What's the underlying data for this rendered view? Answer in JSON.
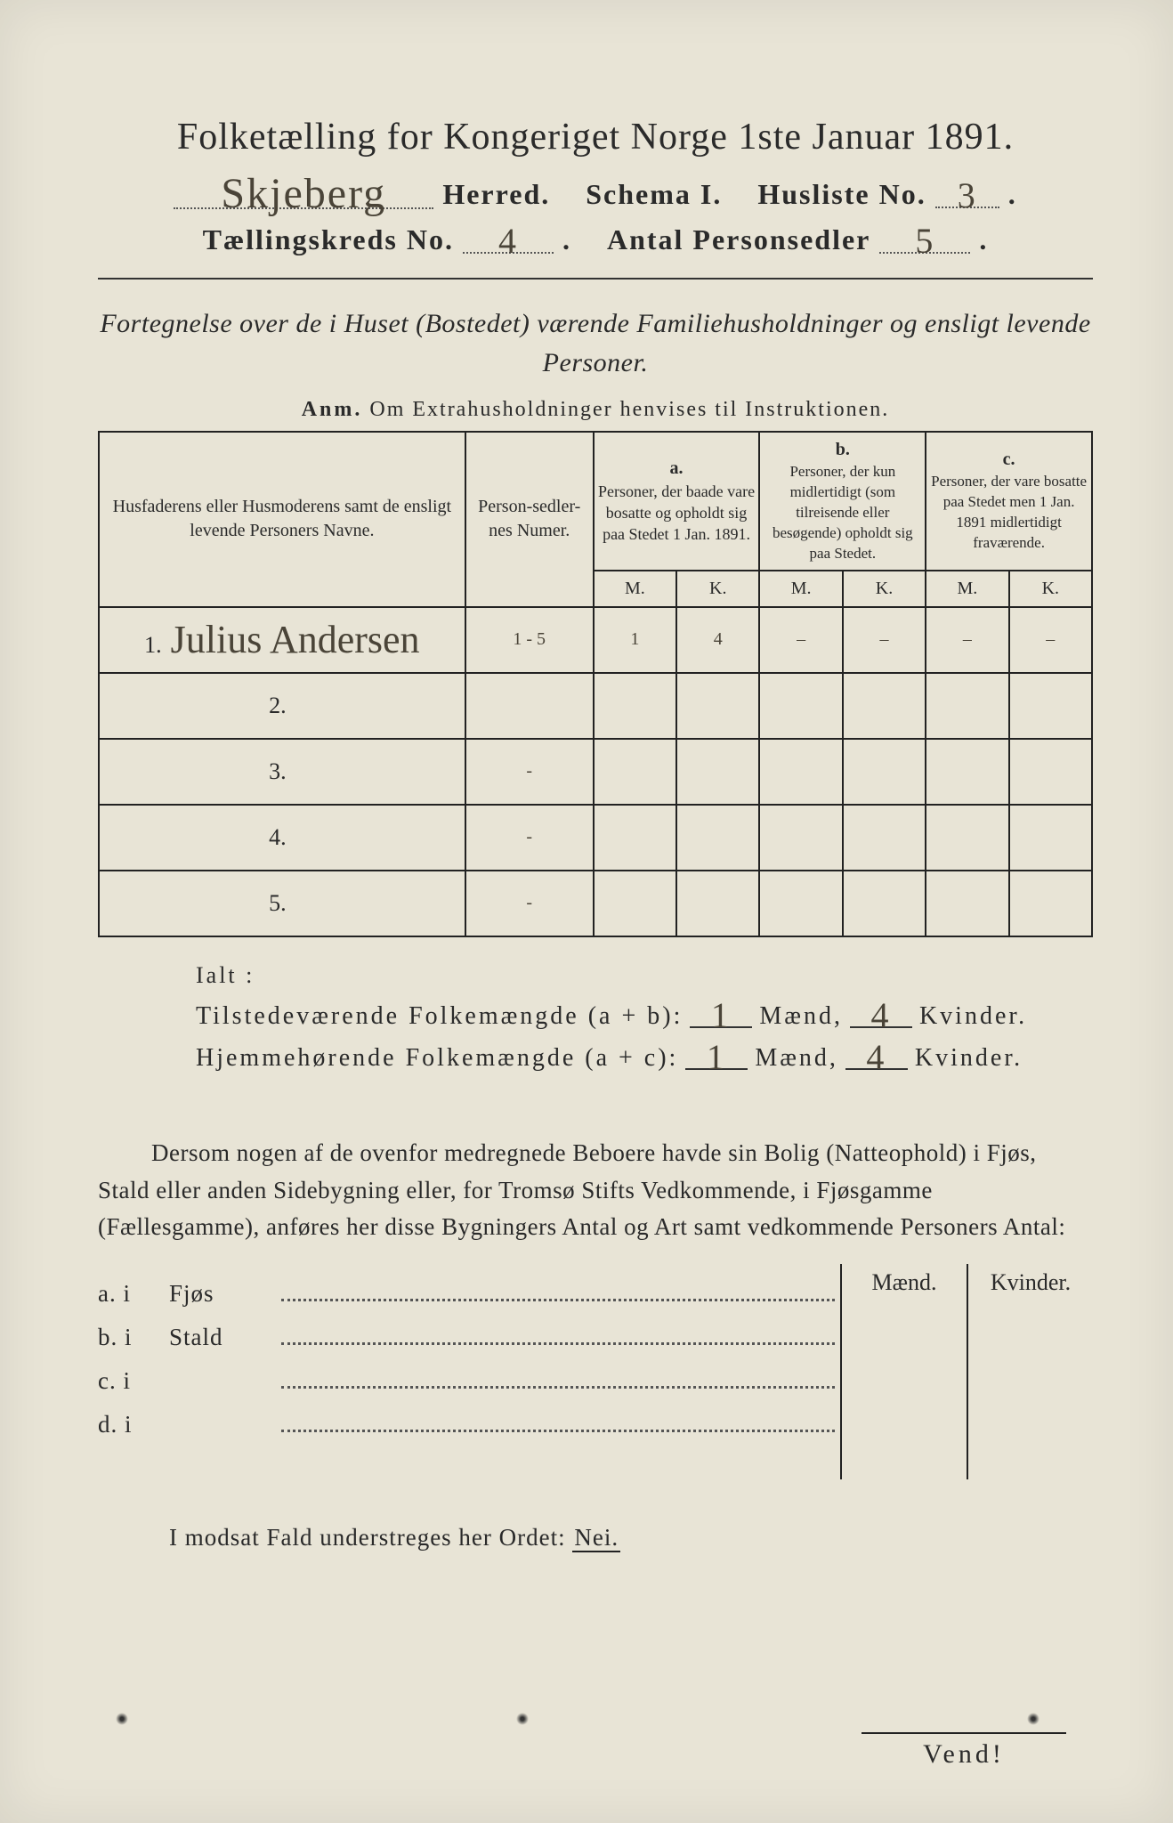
{
  "title": "Folketælling for Kongeriget Norge 1ste Januar 1891.",
  "header": {
    "herred_value": "Skjeberg",
    "herred_label": "Herred.",
    "schema_label": "Schema I.",
    "husliste_label": "Husliste No.",
    "husliste_value": "3",
    "kreds_label": "Tællingskreds No.",
    "kreds_value": "4",
    "antal_label": "Antal Personsedler",
    "antal_value": "5"
  },
  "subtitle": "Fortegnelse over de i Huset (Bostedet) værende Familiehusholdninger og ensligt levende Personer.",
  "anm": {
    "prefix": "Anm.",
    "text": "Om Extrahusholdninger henvises til Instruktionen."
  },
  "table": {
    "headers": {
      "name": "Husfaderens eller Husmoderens samt de ensligt levende Personers Navne.",
      "num": "Person-sedler-nes Numer.",
      "a_label": "a.",
      "a_text": "Personer, der baade vare bosatte og opholdt sig paa Stedet 1 Jan. 1891.",
      "b_label": "b.",
      "b_text": "Personer, der kun midlertidigt (som tilreisende eller besøgende) opholdt sig paa Stedet.",
      "c_label": "c.",
      "c_text": "Personer, der vare bosatte paa Stedet men 1 Jan. 1891 midlertidigt fraværende.",
      "M": "M.",
      "K": "K."
    },
    "rows": [
      {
        "n": "1.",
        "name": "Julius Andersen",
        "num": "1 - 5",
        "aM": "1",
        "aK": "4",
        "bM": "–",
        "bK": "–",
        "cM": "–",
        "cK": "–"
      },
      {
        "n": "2.",
        "name": "",
        "num": "",
        "aM": "",
        "aK": "",
        "bM": "",
        "bK": "",
        "cM": "",
        "cK": ""
      },
      {
        "n": "3.",
        "name": "",
        "num": "-",
        "aM": "",
        "aK": "",
        "bM": "",
        "bK": "",
        "cM": "",
        "cK": ""
      },
      {
        "n": "4.",
        "name": "",
        "num": "-",
        "aM": "",
        "aK": "",
        "bM": "",
        "bK": "",
        "cM": "",
        "cK": ""
      },
      {
        "n": "5.",
        "name": "",
        "num": "-",
        "aM": "",
        "aK": "",
        "bM": "",
        "bK": "",
        "cM": "",
        "cK": ""
      }
    ]
  },
  "ialt": {
    "label": "Ialt :",
    "line1_label": "Tilstedeværende Folkemængde (a + b):",
    "line2_label": "Hjemmehørende Folkemængde (a + c):",
    "maend": "Mænd,",
    "kvinder": "Kvinder.",
    "l1_m": "1",
    "l1_k": "4",
    "l2_m": "1",
    "l2_k": "4"
  },
  "paragraph": "Dersom nogen af de ovenfor medregnede Beboere havde sin Bolig (Natteophold) i Fjøs, Stald eller anden Sidebygning eller, for Tromsø Stifts Vedkommende, i Fjøsgamme (Fællesgamme), anføres her disse Bygningers Antal og Art samt vedkommende Personers Antal:",
  "sideTable": {
    "head_m": "Mænd.",
    "head_k": "Kvinder.",
    "rows": [
      {
        "lbl": "a.  i",
        "item": "Fjøs"
      },
      {
        "lbl": "b.  i",
        "item": "Stald"
      },
      {
        "lbl": "c.  i",
        "item": ""
      },
      {
        "lbl": "d.  i",
        "item": ""
      }
    ]
  },
  "nei_line": {
    "text": "I modsat Fald understreges her Ordet:",
    "nei": "Nei."
  },
  "vend": "Vend!",
  "colors": {
    "paper": "#e8e4d6",
    "ink": "#2a2a2a",
    "handwriting": "#4a4438"
  }
}
